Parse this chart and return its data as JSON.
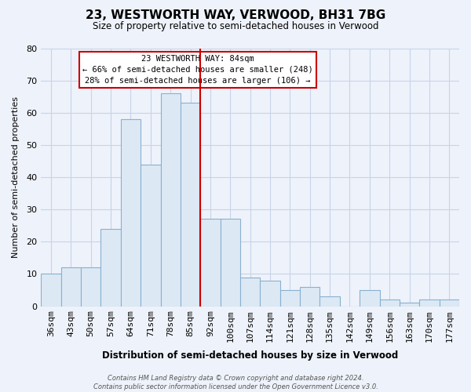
{
  "title": "23, WESTWORTH WAY, VERWOOD, BH31 7BG",
  "subtitle": "Size of property relative to semi-detached houses in Verwood",
  "xlabel": "Distribution of semi-detached houses by size in Verwood",
  "ylabel": "Number of semi-detached properties",
  "categories": [
    "36sqm",
    "43sqm",
    "50sqm",
    "57sqm",
    "64sqm",
    "71sqm",
    "78sqm",
    "85sqm",
    "92sqm",
    "100sqm",
    "107sqm",
    "114sqm",
    "121sqm",
    "128sqm",
    "135sqm",
    "142sqm",
    "149sqm",
    "156sqm",
    "163sqm",
    "170sqm",
    "177sqm"
  ],
  "values": [
    10,
    12,
    12,
    24,
    58,
    44,
    66,
    63,
    27,
    27,
    9,
    8,
    5,
    6,
    3,
    0,
    5,
    2,
    1,
    2,
    2
  ],
  "bar_color": "#dce9f5",
  "bar_edge_color": "#8ab0d0",
  "vline_index": 7,
  "vline_color": "#cc0000",
  "ylim": [
    0,
    80
  ],
  "yticks": [
    0,
    10,
    20,
    30,
    40,
    50,
    60,
    70,
    80
  ],
  "annotation_title": "23 WESTWORTH WAY: 84sqm",
  "annotation_line1": "← 66% of semi-detached houses are smaller (248)",
  "annotation_line2": "28% of semi-detached houses are larger (106) →",
  "annotation_box_color": "#ffffff",
  "annotation_box_edge": "#cc0000",
  "grid_color": "#c8d4e8",
  "background_color": "#eef2fa",
  "footer_line1": "Contains HM Land Registry data © Crown copyright and database right 2024.",
  "footer_line2": "Contains public sector information licensed under the Open Government Licence v3.0."
}
